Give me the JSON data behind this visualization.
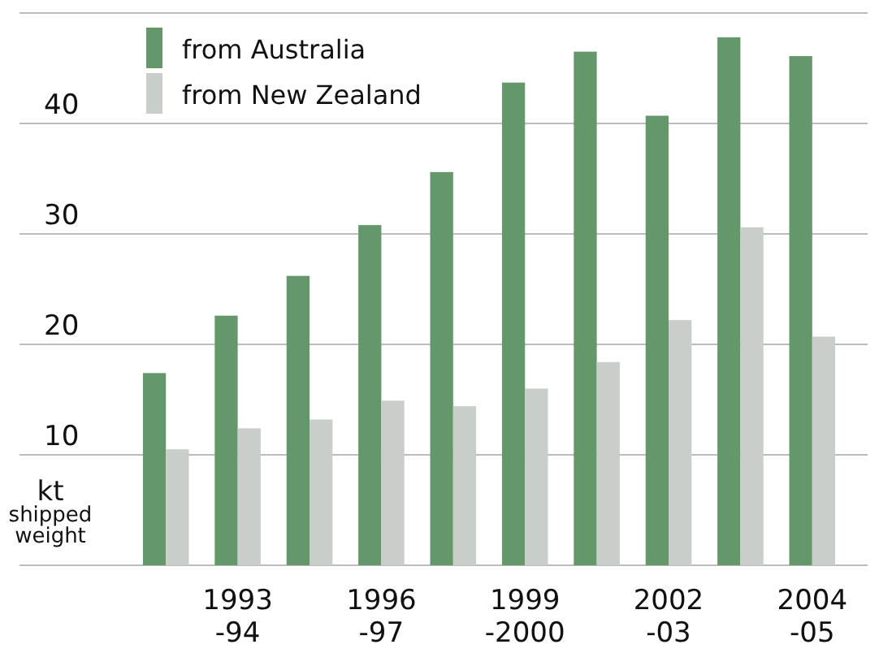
{
  "chart_data": {
    "type": "bar",
    "ylabel": "kt\nshipped\nweight",
    "categories": [
      null,
      "1993\n-94",
      null,
      "1996\n-97",
      null,
      "1999\n-2000",
      null,
      "2002\n-03",
      null,
      "2004\n-05"
    ],
    "series": [
      {
        "name": "from Australia",
        "color": "#64986a",
        "values": [
          17.4,
          22.6,
          26.2,
          30.8,
          35.6,
          43.7,
          46.5,
          40.7,
          47.8,
          46.1
        ]
      },
      {
        "name": "from New Zealand",
        "color": "#c9ceca",
        "values": [
          10.5,
          12.4,
          13.2,
          14.9,
          14.4,
          16.0,
          18.4,
          22.2,
          30.6,
          20.7
        ]
      }
    ],
    "ylim": [
      0,
      50
    ],
    "yticks": [
      {
        "value": 0,
        "label": null
      },
      10,
      20,
      30,
      40,
      {
        "value": 50,
        "label": null
      }
    ],
    "grid": "y",
    "legend": "top left"
  }
}
